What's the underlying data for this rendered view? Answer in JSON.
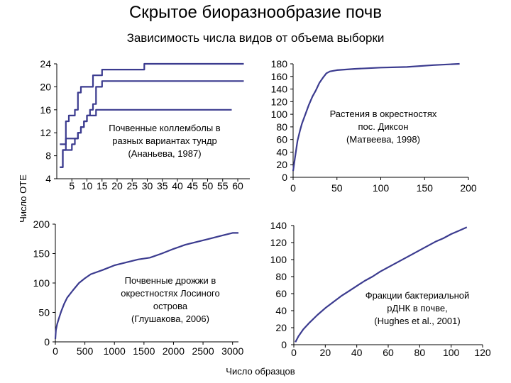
{
  "title": "Скрытое биоразнообразие почв",
  "subtitle": "Зависимость числа видов от объема выборки",
  "ylabel": "Число ОТЕ",
  "xlabel": "Число образцов",
  "colors": {
    "line": "#3b3b8f",
    "axis": "#000000"
  },
  "chart_data": [
    {
      "type": "line",
      "annotation": [
        "Почвенные коллемболы в",
        "разных вариантах тундр",
        "(Ананьева, 1987)"
      ],
      "xticks": [
        5,
        10,
        15,
        20,
        25,
        30,
        35,
        40,
        45,
        50,
        55,
        60
      ],
      "yticks": [
        4,
        8,
        12,
        16,
        20,
        24
      ],
      "xlim": [
        0,
        64
      ],
      "ylim": [
        4,
        24
      ],
      "grid": false,
      "series": [
        {
          "values": [
            [
              1,
              6
            ],
            [
              2,
              9
            ],
            [
              3,
              14
            ],
            [
              4,
              15
            ],
            [
              5,
              15
            ],
            [
              6,
              16
            ],
            [
              7,
              19
            ],
            [
              8,
              20
            ],
            [
              9,
              20
            ],
            [
              10,
              20
            ],
            [
              11,
              20
            ],
            [
              12,
              22
            ],
            [
              13,
              22
            ],
            [
              14,
              22
            ],
            [
              15,
              23
            ],
            [
              16,
              23
            ],
            [
              18,
              23
            ],
            [
              20,
              23
            ],
            [
              22,
              23
            ],
            [
              24,
              23
            ],
            [
              26,
              23
            ],
            [
              28,
              23
            ],
            [
              29,
              24
            ],
            [
              32,
              24
            ],
            [
              40,
              24
            ],
            [
              50,
              24
            ],
            [
              62,
              24
            ]
          ]
        },
        {
          "values": [
            [
              1,
              6
            ],
            [
              2,
              9
            ],
            [
              3,
              9
            ],
            [
              4,
              9
            ],
            [
              5,
              10
            ],
            [
              6,
              11
            ],
            [
              7,
              12
            ],
            [
              8,
              13
            ],
            [
              9,
              14
            ],
            [
              10,
              15
            ],
            [
              11,
              16
            ],
            [
              12,
              17
            ],
            [
              13,
              20
            ],
            [
              14,
              20
            ],
            [
              15,
              21
            ],
            [
              16,
              21
            ],
            [
              20,
              21
            ],
            [
              25,
              21
            ],
            [
              30,
              21
            ],
            [
              35,
              21
            ],
            [
              40,
              21
            ],
            [
              45,
              21
            ],
            [
              50,
              21
            ],
            [
              55,
              21
            ],
            [
              62,
              21
            ]
          ]
        },
        {
          "values": [
            [
              1,
              10
            ],
            [
              2,
              10
            ],
            [
              3,
              11
            ],
            [
              4,
              11
            ],
            [
              5,
              11
            ],
            [
              6,
              11
            ],
            [
              7,
              12
            ],
            [
              8,
              13
            ],
            [
              9,
              14
            ],
            [
              10,
              15
            ],
            [
              11,
              15
            ],
            [
              12,
              15
            ],
            [
              13,
              16
            ],
            [
              14,
              16
            ],
            [
              15,
              16
            ],
            [
              20,
              16
            ],
            [
              25,
              16
            ],
            [
              30,
              16
            ],
            [
              35,
              16
            ],
            [
              40,
              16
            ],
            [
              45,
              16
            ],
            [
              50,
              16
            ],
            [
              58,
              16
            ]
          ]
        }
      ]
    },
    {
      "type": "line",
      "annotation": [
        "Растения в окрестностях",
        "пос. Диксон",
        "(Матвеева, 1998)"
      ],
      "xticks": [
        0,
        50,
        100,
        150,
        200
      ],
      "yticks": [
        0,
        20,
        40,
        60,
        80,
        100,
        120,
        140,
        160,
        180
      ],
      "xlim": [
        0,
        200
      ],
      "ylim": [
        0,
        180
      ],
      "grid": false,
      "series": [
        {
          "values": [
            [
              0,
              10
            ],
            [
              2,
              30
            ],
            [
              5,
              58
            ],
            [
              8,
              75
            ],
            [
              10,
              85
            ],
            [
              14,
              100
            ],
            [
              18,
              115
            ],
            [
              22,
              128
            ],
            [
              26,
              138
            ],
            [
              30,
              150
            ],
            [
              34,
              158
            ],
            [
              38,
              165
            ],
            [
              42,
              168
            ],
            [
              50,
              170
            ],
            [
              70,
              172
            ],
            [
              100,
              174
            ],
            [
              130,
              175
            ],
            [
              160,
              178
            ],
            [
              190,
              180
            ]
          ]
        }
      ]
    },
    {
      "type": "line",
      "annotation": [
        "Почвенные дрожжи в",
        "окрестностях Лосиного",
        "острова",
        "(Глушакова, 2006)"
      ],
      "xticks": [
        0,
        500,
        1000,
        1500,
        2000,
        2500,
        3000
      ],
      "yticks": [
        0,
        50,
        100,
        150,
        200
      ],
      "xlim": [
        0,
        3100
      ],
      "ylim": [
        0,
        200
      ],
      "grid": false,
      "series": [
        {
          "values": [
            [
              0,
              5
            ],
            [
              10,
              20
            ],
            [
              30,
              30
            ],
            [
              60,
              40
            ],
            [
              100,
              52
            ],
            [
              150,
              65
            ],
            [
              200,
              75
            ],
            [
              300,
              88
            ],
            [
              400,
              100
            ],
            [
              500,
              108
            ],
            [
              600,
              115
            ],
            [
              800,
              122
            ],
            [
              1000,
              130
            ],
            [
              1200,
              135
            ],
            [
              1400,
              140
            ],
            [
              1600,
              143
            ],
            [
              1800,
              150
            ],
            [
              2000,
              158
            ],
            [
              2200,
              165
            ],
            [
              2400,
              170
            ],
            [
              2600,
              175
            ],
            [
              2800,
              180
            ],
            [
              3000,
              185
            ],
            [
              3100,
              185
            ]
          ]
        }
      ]
    },
    {
      "type": "line",
      "annotation": [
        "Фракции бактериальной",
        "рДНК в почве,",
        "(Hughes et al., 2001)"
      ],
      "xticks": [
        0,
        20,
        40,
        60,
        80,
        100,
        120
      ],
      "yticks": [
        0,
        20,
        40,
        60,
        80,
        100,
        120,
        140
      ],
      "xlim": [
        0,
        120
      ],
      "ylim": [
        0,
        140
      ],
      "grid": false,
      "series": [
        {
          "values": [
            [
              1,
              3
            ],
            [
              3,
              10
            ],
            [
              6,
              18
            ],
            [
              10,
              26
            ],
            [
              15,
              35
            ],
            [
              20,
              43
            ],
            [
              25,
              50
            ],
            [
              30,
              57
            ],
            [
              35,
              63
            ],
            [
              40,
              69
            ],
            [
              45,
              75
            ],
            [
              50,
              80
            ],
            [
              55,
              86
            ],
            [
              60,
              91
            ],
            [
              65,
              96
            ],
            [
              70,
              101
            ],
            [
              75,
              106
            ],
            [
              80,
              111
            ],
            [
              85,
              116
            ],
            [
              90,
              121
            ],
            [
              95,
              125
            ],
            [
              100,
              130
            ],
            [
              105,
              134
            ],
            [
              110,
              138
            ]
          ]
        }
      ]
    }
  ]
}
